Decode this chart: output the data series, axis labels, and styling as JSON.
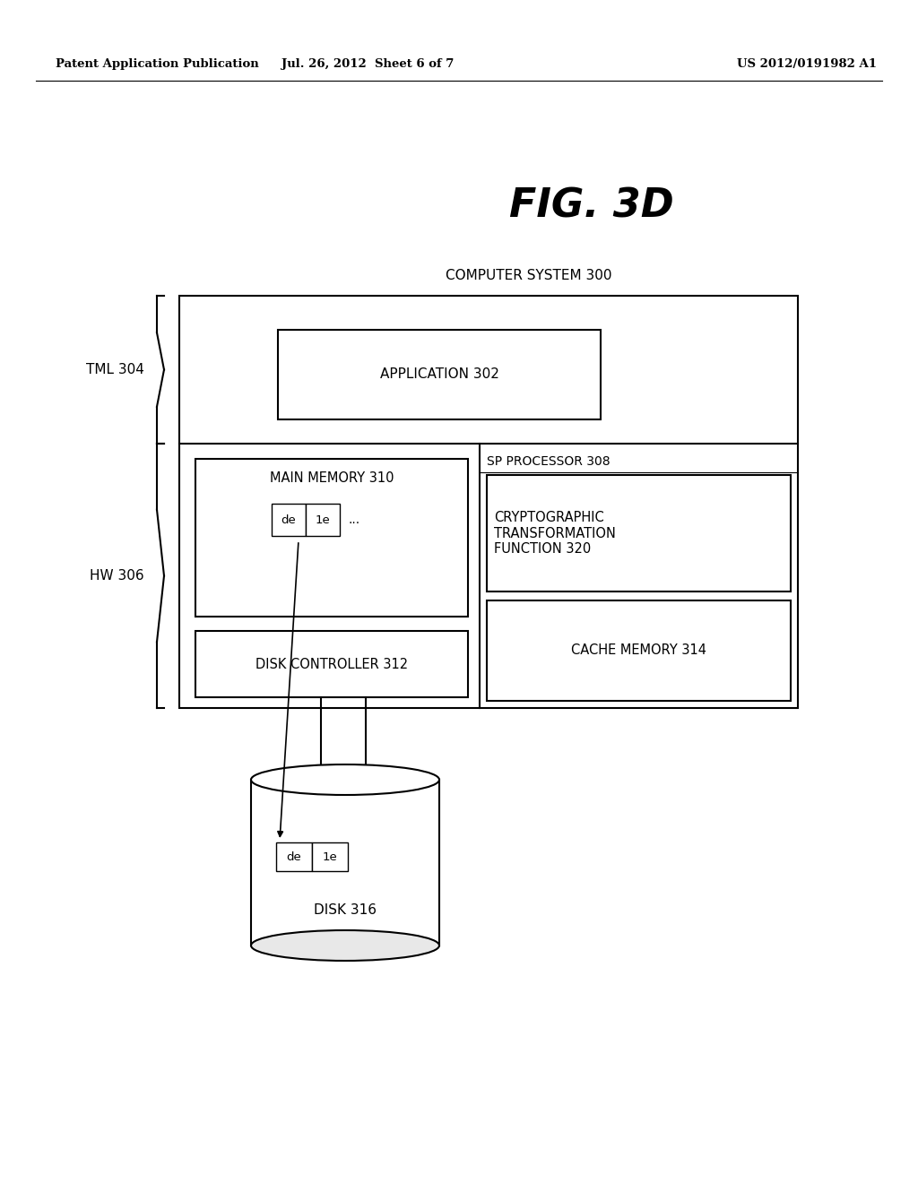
{
  "bg_color": "#ffffff",
  "header_left": "Patent Application Publication",
  "header_mid": "Jul. 26, 2012  Sheet 6 of 7",
  "header_right": "US 2012/0191982 A1",
  "fig_label": "FIG. 3D",
  "computer_system_label": "COMPUTER SYSTEM 300",
  "tml_label": "TML 304",
  "hw_label": "HW 306",
  "app_label": "APPLICATION 302",
  "main_mem_label": "MAIN MEMORY 310",
  "disk_ctrl_label": "DISK CONTROLLER 312",
  "sp_proc_label": "SP PROCESSOR 308",
  "crypto_label": "CRYPTOGRAPHIC\nTRANSFORMATION\nFUNCTION 320",
  "cache_label": "CACHE MEMORY 314",
  "disk_label": "DISK 316",
  "de_label": "de",
  "le1_label": "1e",
  "ellipsis": "...",
  "lw_thin": 1.0,
  "lw_main": 1.5
}
